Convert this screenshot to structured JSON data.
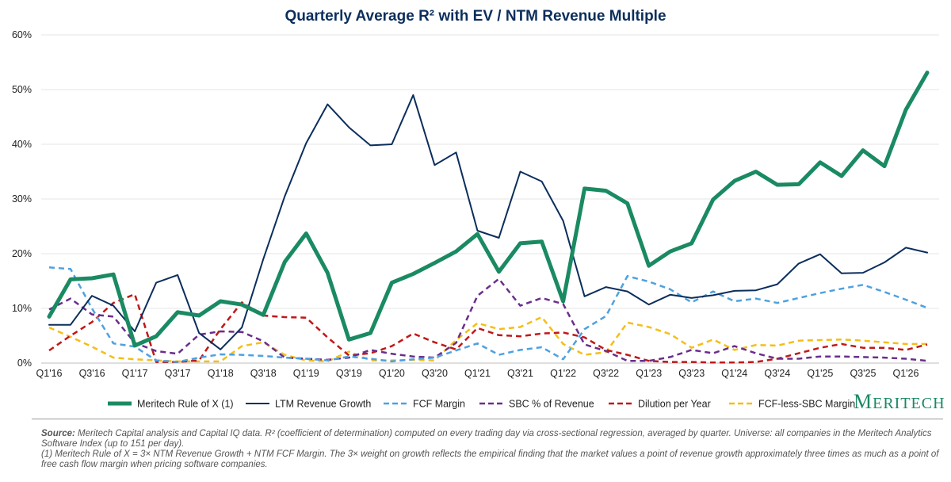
{
  "chart_data": {
    "type": "line",
    "title": "Quarterly Average R² with EV / NTM Revenue Multiple",
    "ylim": [
      0,
      60
    ],
    "y_ticks": [
      "0%",
      "10%",
      "20%",
      "30%",
      "40%",
      "50%",
      "60%"
    ],
    "y_tick_values": [
      0,
      10,
      20,
      30,
      40,
      50,
      60
    ],
    "x_tick_labels": [
      "Q1'16",
      "Q3'16",
      "Q1'17",
      "Q3'17",
      "Q1'18",
      "Q3'18",
      "Q1'19",
      "Q3'19",
      "Q1'20",
      "Q3'20",
      "Q1'21",
      "Q3'21",
      "Q1'22",
      "Q3'22",
      "Q1'23",
      "Q3'23",
      "Q1'24",
      "Q3'24",
      "Q1'25",
      "Q3'25",
      "Q1'26"
    ],
    "x_tick_indices": [
      0,
      2,
      4,
      6,
      8,
      10,
      12,
      14,
      16,
      18,
      20,
      22,
      24,
      26,
      28,
      30,
      32,
      34,
      36,
      38,
      40
    ],
    "n_points": 42,
    "series": [
      {
        "name": "Meritech Rule of X (1)",
        "color": "#1a8a62",
        "style": "solid",
        "width": 5,
        "values": [
          8.5,
          15.3,
          15.5,
          16.2,
          3.2,
          4.9,
          9.3,
          8.7,
          11.3,
          10.7,
          8.8,
          18.5,
          23.7,
          16.5,
          4.3,
          5.5,
          14.7,
          16.3,
          18.3,
          20.4,
          23.6,
          16.7,
          21.9,
          22.2,
          11.3,
          31.9,
          31.5,
          29.2,
          17.8,
          20.4,
          21.9,
          29.9,
          33.3,
          35.0,
          32.6,
          32.7,
          36.7,
          34.2,
          38.9,
          36.0,
          46.3,
          53.1
        ]
      },
      {
        "name": "LTM Revenue Growth",
        "color": "#0b2e5c",
        "style": "solid",
        "width": 2,
        "values": [
          7.0,
          7.0,
          12.3,
          10.5,
          5.8,
          14.7,
          16.1,
          5.5,
          2.5,
          6.5,
          19.0,
          30.5,
          40.2,
          47.3,
          43.1,
          39.8,
          40.0,
          49.0,
          36.2,
          38.5,
          24.2,
          22.9,
          35.0,
          33.2,
          26.0,
          12.2,
          13.9,
          13.1,
          10.7,
          12.5,
          11.9,
          12.4,
          13.2,
          13.3,
          14.4,
          18.2,
          19.9,
          16.4,
          16.5,
          18.4,
          21.1,
          20.2
        ]
      },
      {
        "name": "FCF Margin",
        "color": "#4ea1e0",
        "style": "dash",
        "width": 2.5,
        "values": [
          17.5,
          17.2,
          10.0,
          3.6,
          3.0,
          0.5,
          0.2,
          1.0,
          1.6,
          1.5,
          1.3,
          1.0,
          0.8,
          0.5,
          1.2,
          0.8,
          0.3,
          0.7,
          1.0,
          2.3,
          3.6,
          1.5,
          2.4,
          2.9,
          0.7,
          6.2,
          8.6,
          15.9,
          14.9,
          13.5,
          11.1,
          13.1,
          11.3,
          11.8,
          11.0,
          11.9,
          12.8,
          13.6,
          14.3,
          13.0,
          11.6,
          10.1
        ]
      },
      {
        "name": "SBC % of Revenue",
        "color": "#6a2e8c",
        "style": "dash",
        "width": 2.5,
        "values": [
          9.8,
          11.8,
          8.9,
          8.5,
          3.7,
          2.2,
          1.7,
          5.2,
          5.8,
          5.7,
          4.0,
          1.0,
          0.8,
          0.6,
          1.0,
          2.4,
          1.7,
          1.2,
          1.0,
          3.7,
          12.3,
          15.4,
          10.5,
          11.9,
          10.8,
          3.4,
          2.2,
          0.4,
          0.4,
          1.1,
          2.4,
          1.8,
          3.1,
          1.8,
          0.8,
          0.8,
          1.2,
          1.2,
          1.1,
          1.0,
          0.8,
          0.4
        ]
      },
      {
        "name": "Dilution per Year",
        "color": "#c01818",
        "style": "dash",
        "width": 2.5,
        "values": [
          2.3,
          5.0,
          7.5,
          11.0,
          12.6,
          0.2,
          0.2,
          0.5,
          6.2,
          11.1,
          8.7,
          8.4,
          8.3,
          4.7,
          1.4,
          1.8,
          3.1,
          5.4,
          3.8,
          2.5,
          6.4,
          5.1,
          4.9,
          5.4,
          5.6,
          4.7,
          2.4,
          1.5,
          0.4,
          0.2,
          0.2,
          0.1,
          0.1,
          0.2,
          0.8,
          1.8,
          2.8,
          3.5,
          2.8,
          2.8,
          2.4,
          3.4
        ]
      },
      {
        "name": "FCF-less-SBC Margin",
        "color": "#f5be16",
        "style": "dash",
        "width": 2.5,
        "values": [
          6.5,
          4.8,
          3.0,
          1.0,
          0.7,
          0.5,
          0.3,
          0.3,
          0.3,
          3.1,
          3.8,
          1.5,
          0.5,
          0.3,
          2.1,
          0.5,
          0.5,
          0.6,
          0.5,
          4.2,
          7.3,
          6.2,
          6.6,
          8.4,
          3.5,
          1.5,
          2.0,
          7.4,
          6.6,
          5.3,
          2.8,
          4.3,
          2.4,
          3.3,
          3.2,
          4.1,
          4.2,
          4.3,
          4.1,
          3.8,
          3.5,
          3.5
        ]
      }
    ]
  },
  "logo": {
    "text_big": "M",
    "text_rest": "ERITECH"
  },
  "footnote": {
    "source_label": "Source:",
    "source_text": " Meritech Capital analysis and Capital IQ data. R² (coefficient of determination) computed on every trading day via cross-sectional regression, averaged by quarter. Universe: all companies in the Meritech Analytics Software Index (up to 151 per day).",
    "note_text": "(1) Meritech Rule of X = 3× NTM Revenue Growth + NTM FCF Margin. The 3× weight on growth reflects the empirical finding that the market values a point of revenue growth approximately three times as much as a point of free cash flow margin when pricing software companies."
  }
}
